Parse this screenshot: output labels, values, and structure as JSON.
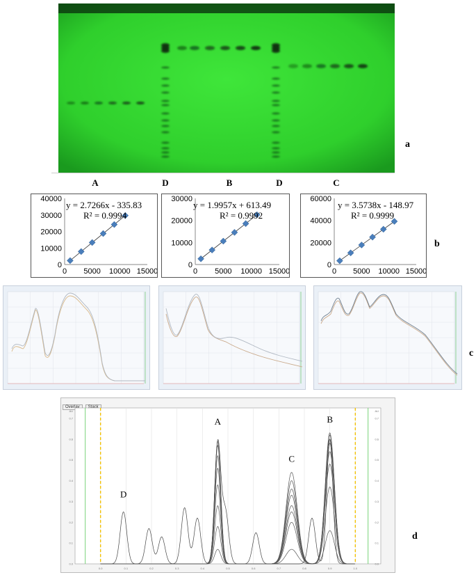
{
  "panel_labels": {
    "a": "a",
    "b": "b",
    "c": "c",
    "d": "d"
  },
  "plate": {
    "lane_labels": [
      "A",
      "D",
      "B",
      "D",
      "C"
    ]
  },
  "chart_data": [
    {
      "type": "scatter",
      "id": "calib-A",
      "x": [
        1000,
        3000,
        5000,
        7000,
        9000,
        11000
      ],
      "y": [
        2390,
        7840,
        13300,
        18750,
        24200,
        29650
      ],
      "equation": "y = 2.7266x - 335.83",
      "r2": "R² = 0.9994",
      "xlim": [
        0,
        15000
      ],
      "ylim": [
        0,
        40000
      ],
      "xticks": [
        0,
        5000,
        10000,
        15000
      ],
      "yticks": [
        0,
        10000,
        20000,
        30000,
        40000
      ],
      "trendline": true,
      "marker_color": "#4a7ebb"
    },
    {
      "type": "scatter",
      "id": "calib-B",
      "x": [
        1000,
        3000,
        5000,
        7000,
        9000,
        11000
      ],
      "y": [
        2600,
        6600,
        10600,
        14580,
        18570,
        22570
      ],
      "equation": "y = 1.9957x + 613.49",
      "r2": "R² = 0.9992",
      "xlim": [
        0,
        15000
      ],
      "ylim": [
        0,
        30000
      ],
      "xticks": [
        0,
        5000,
        10000,
        15000
      ],
      "yticks": [
        0,
        10000,
        20000,
        30000
      ],
      "trendline": true,
      "marker_color": "#4a7ebb"
    },
    {
      "type": "scatter",
      "id": "calib-C",
      "x": [
        1000,
        3000,
        5000,
        7000,
        9000,
        11000
      ],
      "y": [
        3420,
        10570,
        17720,
        24870,
        32020,
        39160
      ],
      "equation": "y = 3.5738x - 148.97",
      "r2": "R² = 0.9999",
      "xlim": [
        0,
        15000
      ],
      "ylim": [
        0,
        60000
      ],
      "xticks": [
        0,
        5000,
        10000,
        15000
      ],
      "yticks": [
        0,
        20000,
        40000,
        60000
      ],
      "trendline": true,
      "marker_color": "#4a7ebb"
    },
    {
      "type": "line",
      "id": "densitogram",
      "tabs": [
        "Overlay",
        "Stack"
      ],
      "ylabel": "AU",
      "xlim": [
        -0.1,
        1.1
      ],
      "ylim": [
        0,
        0.75
      ],
      "xticks": [
        0.0,
        0.1,
        0.2,
        0.3,
        0.4,
        0.5,
        0.6,
        0.7,
        0.8,
        0.9,
        1.0
      ],
      "yticks": [
        0.0,
        0.1,
        0.2,
        0.3,
        0.4,
        0.5,
        0.6,
        0.7
      ],
      "peaks": [
        {
          "label": "D",
          "rf": 0.09
        },
        {
          "label": "A",
          "rf": 0.46
        },
        {
          "label": "C",
          "rf": 0.75
        },
        {
          "label": "B",
          "rf": 0.9
        }
      ],
      "peak_heights": {
        "A": [
          0.07,
          0.18,
          0.28,
          0.38,
          0.46,
          0.52,
          0.57,
          0.59
        ],
        "C": [
          0.07,
          0.2,
          0.25,
          0.28,
          0.33,
          0.36,
          0.4,
          0.44
        ],
        "B": [
          0.16,
          0.37,
          0.48,
          0.54,
          0.58,
          0.6,
          0.62,
          0.63
        ]
      },
      "d_lane_peaks": [
        {
          "rf": 0.09,
          "h": 0.25
        },
        {
          "rf": 0.19,
          "h": 0.17
        },
        {
          "rf": 0.24,
          "h": 0.13
        },
        {
          "rf": 0.33,
          "h": 0.27
        },
        {
          "rf": 0.38,
          "h": 0.22
        },
        {
          "rf": 0.46,
          "h": 0.58
        },
        {
          "rf": 0.49,
          "h": 0.25
        },
        {
          "rf": 0.61,
          "h": 0.15
        },
        {
          "rf": 0.83,
          "h": 0.22
        },
        {
          "rf": 0.9,
          "h": 0.6
        }
      ]
    }
  ]
}
